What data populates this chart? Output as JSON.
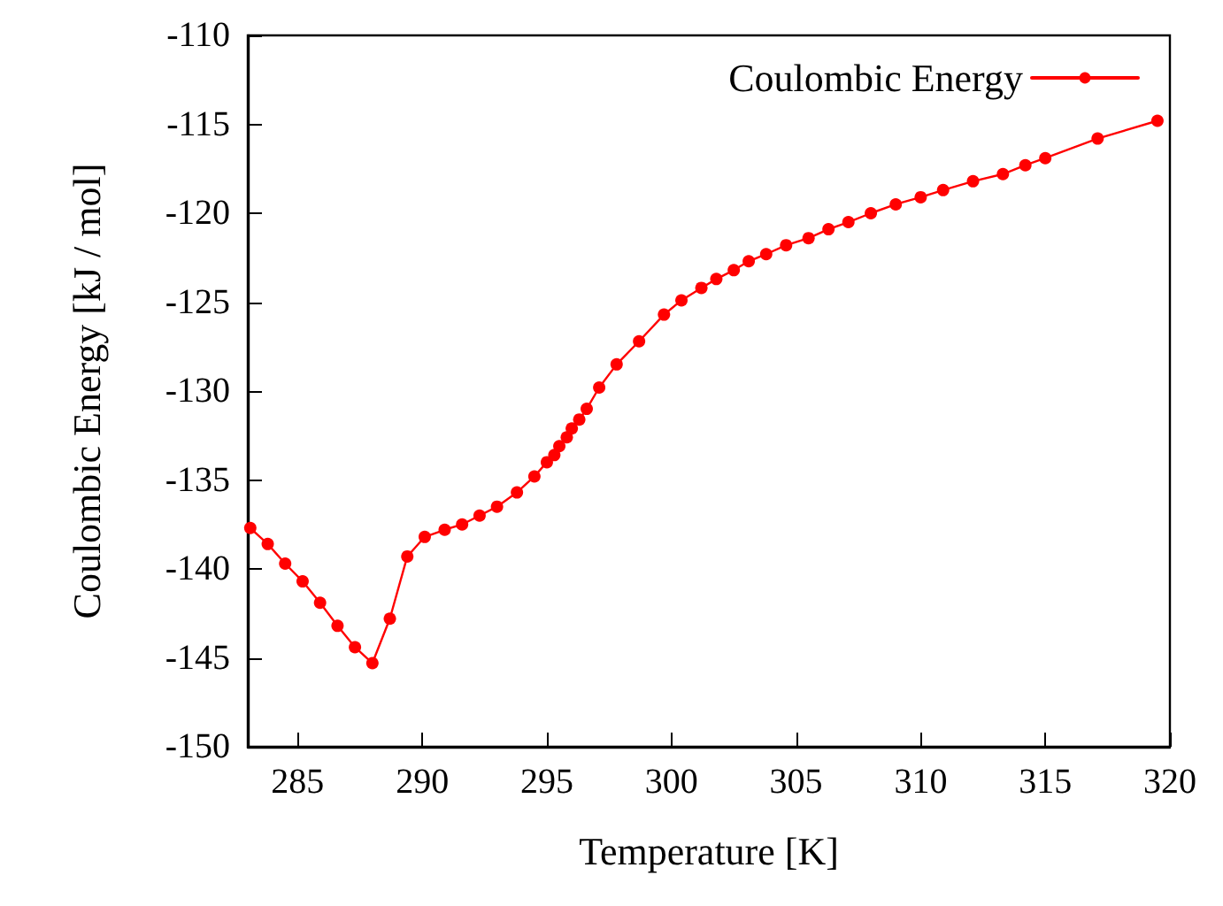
{
  "chart_data": {
    "type": "line",
    "xlabel": "Temperature [K]",
    "ylabel": "Coulombic Energy [kJ / mol]",
    "xlim": [
      283,
      320
    ],
    "xticks": [
      285,
      290,
      295,
      300,
      305,
      310,
      315,
      320
    ],
    "ylim": [
      -150,
      -110
    ],
    "yticks": [
      -150,
      -145,
      -140,
      -135,
      -130,
      -125,
      -120,
      -115,
      -110
    ],
    "grid": false,
    "legend": "top right",
    "marker": "circle",
    "line_style": "solid",
    "series": [
      {
        "name": "Coulombic Energy",
        "color": "#ff0000",
        "x": [
          283.1,
          283.8,
          284.5,
          285.2,
          285.9,
          286.6,
          287.3,
          288.0,
          288.7,
          289.4,
          290.1,
          290.9,
          291.6,
          292.3,
          293.0,
          293.8,
          294.5,
          295.0,
          295.3,
          295.5,
          295.8,
          296.0,
          296.3,
          296.6,
          297.1,
          297.8,
          298.7,
          299.7,
          300.4,
          301.2,
          301.8,
          302.5,
          303.1,
          303.8,
          304.6,
          305.5,
          306.3,
          307.1,
          308.0,
          309.0,
          310.0,
          310.9,
          312.1,
          313.3,
          314.2,
          315.0,
          317.1,
          319.5
        ],
        "values": [
          -137.7,
          -138.6,
          -139.7,
          -140.7,
          -141.9,
          -143.2,
          -144.4,
          -145.3,
          -142.8,
          -139.3,
          -138.2,
          -137.8,
          -137.5,
          -137.0,
          -136.5,
          -135.7,
          -134.8,
          -134.0,
          -133.6,
          -133.1,
          -132.6,
          -132.1,
          -131.6,
          -131.0,
          -129.8,
          -128.5,
          -127.2,
          -125.7,
          -124.9,
          -124.2,
          -123.7,
          -123.2,
          -122.7,
          -122.3,
          -121.8,
          -121.4,
          -120.9,
          -120.5,
          -120.0,
          -119.5,
          -119.1,
          -118.7,
          -118.2,
          -117.8,
          -117.3,
          -116.9,
          -115.8,
          -114.8
        ]
      }
    ]
  }
}
